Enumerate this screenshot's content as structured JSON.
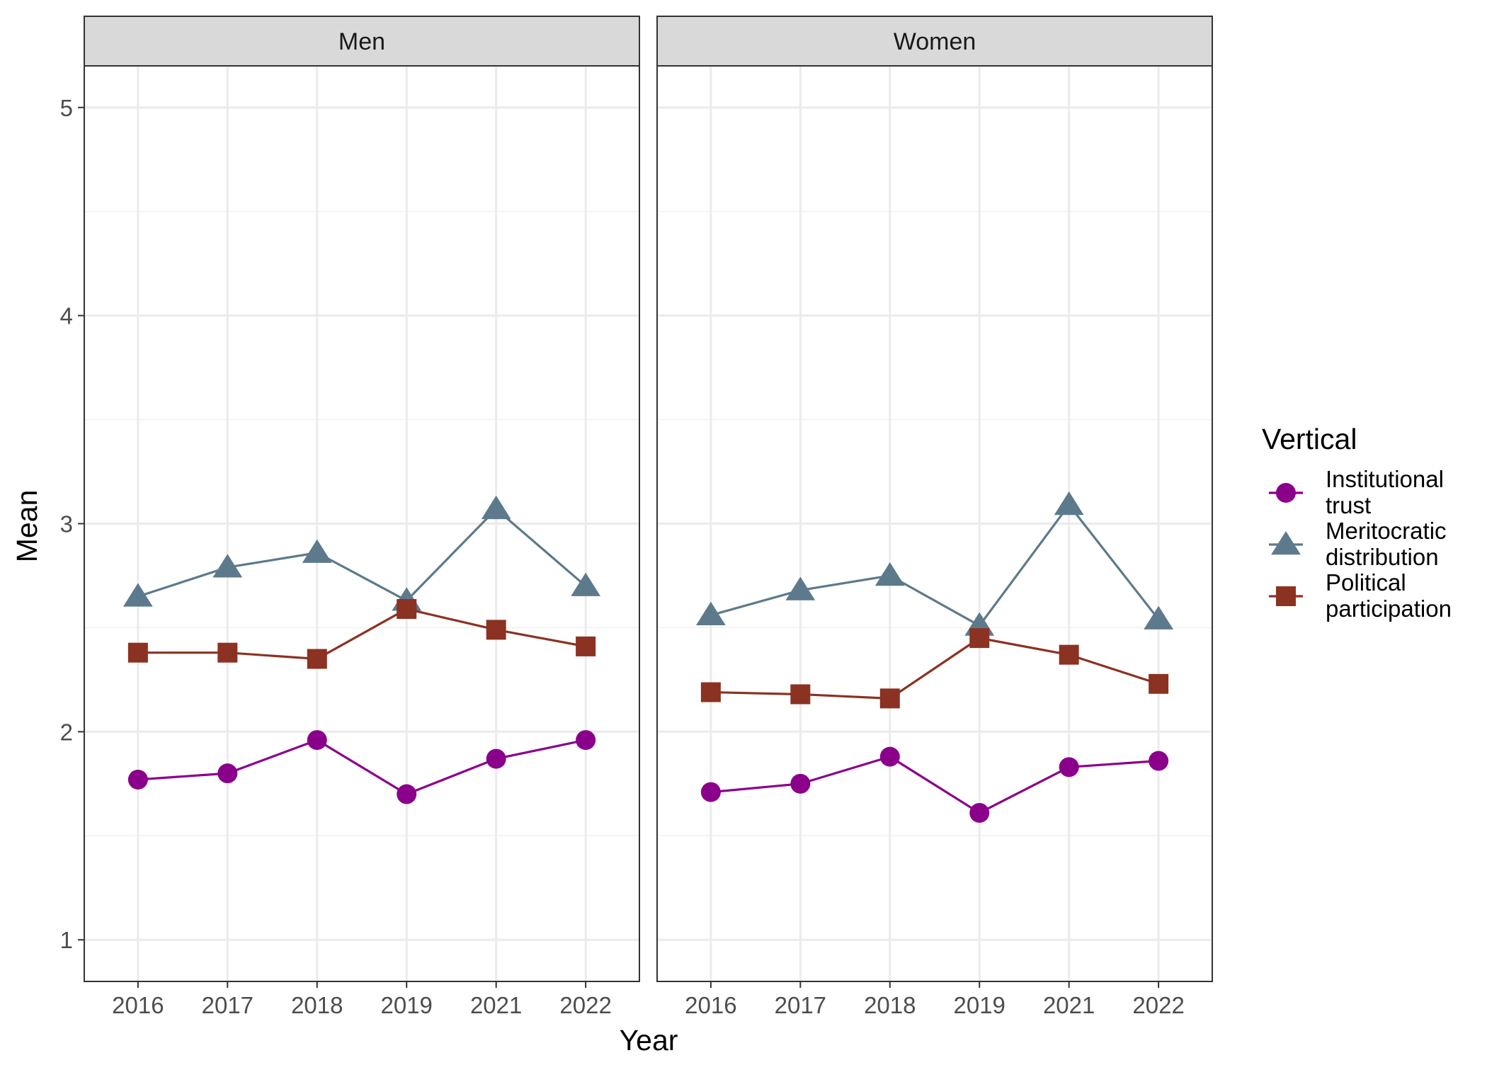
{
  "chart_data": {
    "type": "line",
    "facets": [
      "Men",
      "Women"
    ],
    "x_categories": [
      "2016",
      "2017",
      "2018",
      "2019",
      "2021",
      "2022"
    ],
    "xlabel": "Year",
    "ylabel": "Mean",
    "ylim": [
      0.8,
      5.2
    ],
    "y_ticks": [
      1,
      2,
      3,
      4,
      5
    ],
    "y_minor_ticks": [
      1.5,
      2.5,
      3.5,
      4.5
    ],
    "grid": true,
    "legend": {
      "title": "Vertical",
      "placement": "right",
      "entries": [
        {
          "lines": [
            "Institutional",
            "trust"
          ],
          "series": "Institutional trust"
        },
        {
          "lines": [
            "Meritocratic",
            "distribution"
          ],
          "series": "Meritocratic distribution"
        },
        {
          "lines": [
            "Political",
            "participation"
          ],
          "series": "Political participation"
        }
      ]
    },
    "series": [
      {
        "name": "Institutional trust",
        "color": "#8b008b",
        "shape": "circle",
        "values": {
          "Men": [
            1.77,
            1.8,
            1.96,
            1.7,
            1.87,
            1.96
          ],
          "Women": [
            1.71,
            1.75,
            1.88,
            1.61,
            1.83,
            1.86
          ]
        }
      },
      {
        "name": "Meritocratic distribution",
        "color": "#5c7a8c",
        "shape": "triangle",
        "values": {
          "Men": [
            2.65,
            2.79,
            2.86,
            2.63,
            3.07,
            2.7
          ],
          "Women": [
            2.56,
            2.68,
            2.75,
            2.51,
            3.09,
            2.54
          ]
        }
      },
      {
        "name": "Political participation",
        "color": "#8b3222",
        "shape": "square",
        "values": {
          "Men": [
            2.38,
            2.38,
            2.35,
            2.59,
            2.49,
            2.41
          ],
          "Women": [
            2.19,
            2.18,
            2.16,
            2.45,
            2.37,
            2.23
          ]
        }
      }
    ]
  }
}
